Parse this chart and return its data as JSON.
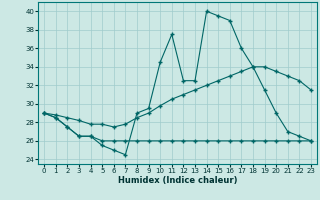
{
  "title": "",
  "xlabel": "Humidex (Indice chaleur)",
  "background_color": "#cce8e4",
  "grid_color": "#a0cccc",
  "line_color": "#006666",
  "xlim": [
    -0.5,
    23.5
  ],
  "ylim": [
    23.5,
    41.0
  ],
  "yticks": [
    24,
    26,
    28,
    30,
    32,
    34,
    36,
    38,
    40
  ],
  "xticks": [
    0,
    1,
    2,
    3,
    4,
    5,
    6,
    7,
    8,
    9,
    10,
    11,
    12,
    13,
    14,
    15,
    16,
    17,
    18,
    19,
    20,
    21,
    22,
    23
  ],
  "series1_x": [
    0,
    1,
    2,
    3,
    4,
    5,
    6,
    7,
    8,
    9,
    10,
    11,
    12,
    13,
    14,
    15,
    16,
    17,
    18,
    19,
    20,
    21,
    22,
    23
  ],
  "series1_y": [
    29,
    28.5,
    27.5,
    26.5,
    26.5,
    25.5,
    25.0,
    24.5,
    29.0,
    29.5,
    34.5,
    37.5,
    32.5,
    32.5,
    40.0,
    39.5,
    39.0,
    36.0,
    34.0,
    31.5,
    29.0,
    27.0,
    26.5,
    26.0
  ],
  "series2_x": [
    0,
    1,
    2,
    3,
    4,
    5,
    6,
    7,
    8,
    9,
    10,
    11,
    12,
    13,
    14,
    15,
    16,
    17,
    18,
    19,
    20,
    21,
    22,
    23
  ],
  "series2_y": [
    29.0,
    28.5,
    27.5,
    26.5,
    26.5,
    26.0,
    26.0,
    26.0,
    26.0,
    26.0,
    26.0,
    26.0,
    26.0,
    26.0,
    26.0,
    26.0,
    26.0,
    26.0,
    26.0,
    26.0,
    26.0,
    26.0,
    26.0,
    26.0
  ],
  "series3_x": [
    0,
    1,
    2,
    3,
    4,
    5,
    6,
    7,
    8,
    9,
    10,
    11,
    12,
    13,
    14,
    15,
    16,
    17,
    18,
    19,
    20,
    21,
    22,
    23
  ],
  "series3_y": [
    29.0,
    28.8,
    28.5,
    28.2,
    27.8,
    27.8,
    27.5,
    27.8,
    28.5,
    29.0,
    29.8,
    30.5,
    31.0,
    31.5,
    32.0,
    32.5,
    33.0,
    33.5,
    34.0,
    34.0,
    33.5,
    33.0,
    32.5,
    31.5
  ]
}
